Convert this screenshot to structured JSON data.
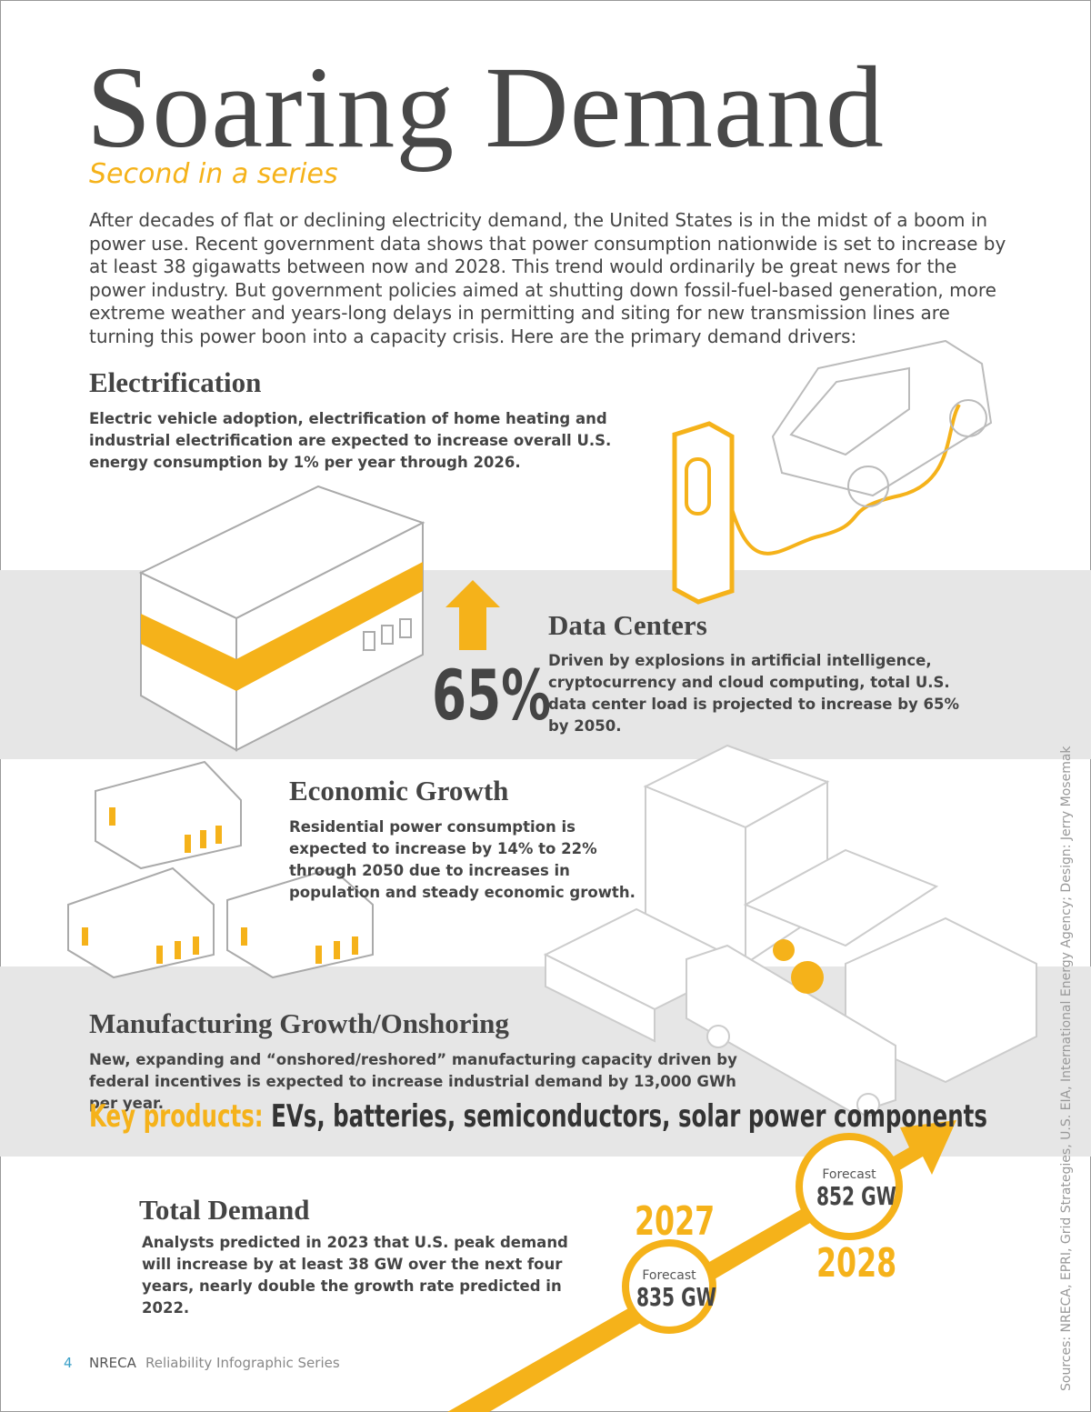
{
  "header": {
    "title": "Soaring Demand",
    "subtitle": "Second in a series"
  },
  "intro": "After decades of flat or declining electricity demand, the United States is in the midst of a boom in power use. Recent government data shows that power consumption nationwide is set to increase by at least 38 gigawatts between now and 2028. This trend would ordinarily be great news for the power industry. But government policies aimed at shutting down fossil-fuel-based generation, more extreme weather and years-long delays in permitting and siting for new transmission lines are turning this power boon into a capacity crisis.  Here are the primary demand drivers:",
  "sections": [
    {
      "heading": "Electrification",
      "body": "Electric vehicle adoption, electrification of home heating and industrial electrification are expected to increase overall U.S. energy consumption by 1% per year through 2026."
    },
    {
      "heading": "Data Centers",
      "body": "Driven by explosions in artificial intelligence, cryptocurrency and cloud computing, total U.S. data center load is projected to increase by 65% by 2050.",
      "stat": "65%"
    },
    {
      "heading": "Economic Growth",
      "body": "Residential power consumption is expected to increase by 14% to 22% through 2050 due to increases in population and steady economic growth."
    },
    {
      "heading": "Manufacturing Growth/Onshoring",
      "body": "New, expanding and “onshored/reshored” manufacturing capacity driven by federal incentives is expected to increase industrial demand by 13,000 GWh per year.",
      "key_products_label": "Key products:",
      "key_products": "EVs, batteries, semiconductors, solar power components"
    },
    {
      "heading": "Total Demand",
      "body": "Analysts predicted in 2023 that U.S. peak demand will increase by at least 38 GW over the next four years, nearly double the growth rate predicted in 2022."
    }
  ],
  "forecasts": [
    {
      "year": "2027",
      "label": "Forecast",
      "value": "835 GW"
    },
    {
      "year": "2028",
      "label": "Forecast",
      "value": "852 GW"
    }
  ],
  "footer": {
    "page": "4",
    "org": "NRECA",
    "series": "Reliability Infographic Series"
  },
  "sources": "Sources: NRECA, EPRI, Grid Strategies, U.S. EIA, International Energy Agency; Design: Jerry Mosemak"
}
